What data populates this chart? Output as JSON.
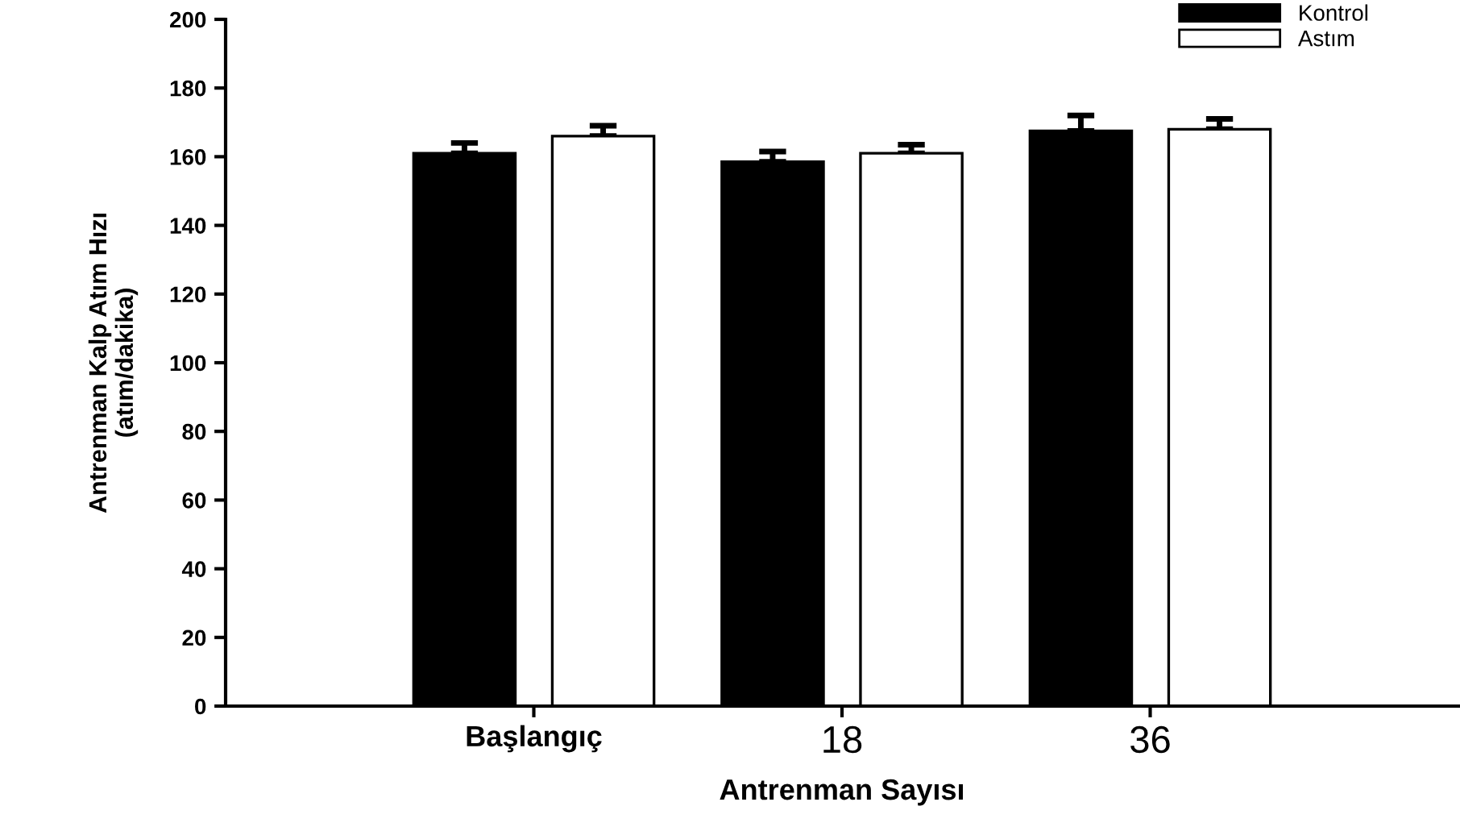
{
  "chart_data": {
    "type": "bar",
    "xlabel": "Antrenman Sayısı",
    "ylabel": "Antrenman Kalp Atım Hızı\n(atım/dakika)",
    "categories": [
      "Başlangıç",
      "18",
      "36"
    ],
    "series": [
      {
        "name": "Kontrol",
        "color": "#000000",
        "values": [
          161,
          158.5,
          167.5
        ],
        "errors": [
          [
            161,
            164
          ],
          [
            158.5,
            161.5
          ],
          [
            167.5,
            172
          ]
        ]
      },
      {
        "name": "Astım",
        "color": "#ffffff",
        "values": [
          166,
          161,
          168
        ],
        "errors": [
          [
            166,
            169
          ],
          [
            161,
            163.5
          ],
          [
            168,
            171
          ]
        ]
      }
    ],
    "ylim": [
      0,
      200
    ],
    "yticks": [
      0,
      20,
      40,
      60,
      80,
      100,
      120,
      140,
      160,
      180,
      200
    ],
    "grid": false,
    "legend": "top right"
  }
}
